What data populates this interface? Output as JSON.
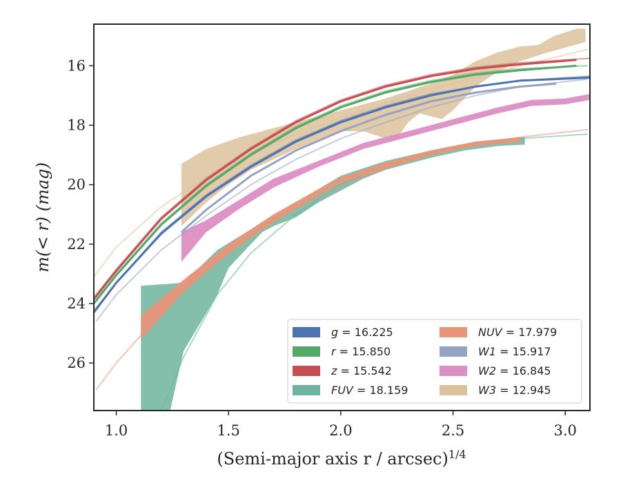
{
  "chart_data": {
    "type": "area",
    "xlabel": "(Semi-major axis r / arcsec)",
    "xlabel_sup": "1/4",
    "ylabel": "m(< r) (mag)",
    "xlim": [
      0.9,
      3.11
    ],
    "ylim": [
      27.6,
      14.6
    ],
    "y_inverted": true,
    "x_ticks": [
      1.0,
      1.5,
      2.0,
      2.5,
      3.0
    ],
    "x_tick_labels": [
      "1.0",
      "1.5",
      "2.0",
      "2.5",
      "3.0"
    ],
    "y_ticks": [
      16,
      18,
      20,
      22,
      24,
      26
    ],
    "y_tick_labels": [
      "16",
      "18",
      "20",
      "22",
      "24",
      "26"
    ],
    "grid": false,
    "legend_position": "bottom-right",
    "legend": [
      {
        "band": "g",
        "value": "16.225",
        "color": "#4c72b0"
      },
      {
        "band": "NUV",
        "value": "17.979",
        "color": "#e8957a"
      },
      {
        "band": "r",
        "value": "15.850",
        "color": "#55a868"
      },
      {
        "band": "W1",
        "value": "15.917",
        "color": "#95a3c3"
      },
      {
        "band": "z",
        "value": "15.542",
        "color": "#c44e52"
      },
      {
        "band": "W2",
        "value": "16.845",
        "color": "#dd8ec4"
      },
      {
        "band": "FUV",
        "value": "18.159",
        "color": "#6fb49e"
      },
      {
        "band": "W3",
        "value": "12.945",
        "color": "#dcc29c"
      }
    ],
    "series": [
      {
        "band": "W3",
        "color": "#dcc29c",
        "model": [
          [
            0.9,
            23.1
          ],
          [
            1.0,
            22.1
          ],
          [
            1.2,
            20.75
          ],
          [
            1.4,
            19.75
          ],
          [
            1.6,
            18.95
          ],
          [
            1.8,
            18.3
          ],
          [
            2.0,
            17.75
          ],
          [
            2.2,
            17.25
          ],
          [
            2.4,
            16.8
          ],
          [
            2.6,
            16.4
          ],
          [
            2.8,
            16.0
          ],
          [
            3.1,
            15.45
          ]
        ],
        "band_upper": [
          [
            1.29,
            19.3
          ],
          [
            1.4,
            18.8
          ],
          [
            1.55,
            18.4
          ],
          [
            1.75,
            18.0
          ],
          [
            2.0,
            17.5
          ],
          [
            2.2,
            17.1
          ],
          [
            2.4,
            16.6
          ],
          [
            2.5,
            16.3
          ],
          [
            2.6,
            15.85
          ],
          [
            2.7,
            15.55
          ],
          [
            2.8,
            15.35
          ],
          [
            2.88,
            15.3
          ],
          [
            2.95,
            15.0
          ],
          [
            3.05,
            14.75
          ],
          [
            3.09,
            14.75
          ]
        ],
        "band_lower": [
          [
            3.09,
            15.2
          ],
          [
            2.9,
            15.6
          ],
          [
            2.8,
            15.85
          ],
          [
            2.7,
            16.2
          ],
          [
            2.6,
            16.7
          ],
          [
            2.5,
            17.5
          ],
          [
            2.45,
            17.8
          ],
          [
            2.35,
            17.6
          ],
          [
            2.3,
            17.9
          ],
          [
            2.25,
            18.45
          ],
          [
            2.2,
            18.45
          ],
          [
            2.1,
            18.2
          ],
          [
            2.0,
            18.2
          ],
          [
            1.9,
            18.5
          ],
          [
            1.8,
            18.8
          ],
          [
            1.6,
            19.5
          ],
          [
            1.5,
            20.0
          ],
          [
            1.4,
            20.6
          ],
          [
            1.29,
            21.4
          ]
        ]
      },
      {
        "band": "FUV",
        "color": "#6fb49e",
        "model": [
          [
            1.2,
            27.6
          ],
          [
            1.3,
            25.8
          ],
          [
            1.45,
            23.7
          ],
          [
            1.6,
            22.3
          ],
          [
            1.8,
            21.0
          ],
          [
            2.0,
            20.0
          ],
          [
            2.2,
            19.35
          ],
          [
            2.4,
            18.9
          ],
          [
            2.6,
            18.6
          ],
          [
            2.8,
            18.45
          ],
          [
            3.1,
            18.3
          ]
        ],
        "band_upper": [
          [
            1.11,
            23.4
          ],
          [
            1.3,
            23.3
          ],
          [
            1.45,
            22.2
          ],
          [
            1.6,
            21.5
          ],
          [
            1.8,
            20.6
          ],
          [
            2.0,
            19.7
          ],
          [
            2.2,
            19.2
          ],
          [
            2.4,
            18.85
          ],
          [
            2.6,
            18.55
          ],
          [
            2.82,
            18.4
          ]
        ],
        "band_lower": [
          [
            2.82,
            18.65
          ],
          [
            2.7,
            18.7
          ],
          [
            2.55,
            18.85
          ],
          [
            2.4,
            19.1
          ],
          [
            2.3,
            19.3
          ],
          [
            2.2,
            19.5
          ],
          [
            2.1,
            19.8
          ],
          [
            2.0,
            20.2
          ],
          [
            1.9,
            20.6
          ],
          [
            1.8,
            21.1
          ],
          [
            1.7,
            21.4
          ],
          [
            1.65,
            21.6
          ],
          [
            1.6,
            22.0
          ],
          [
            1.5,
            22.8
          ],
          [
            1.45,
            23.7
          ],
          [
            1.3,
            25.6
          ],
          [
            1.24,
            27.6
          ],
          [
            1.11,
            27.6
          ]
        ]
      },
      {
        "band": "NUV",
        "color": "#e8957a",
        "model": [
          [
            0.91,
            26.9
          ],
          [
            1.0,
            26.0
          ],
          [
            1.2,
            24.3
          ],
          [
            1.4,
            22.9
          ],
          [
            1.6,
            21.75
          ],
          [
            1.8,
            20.8
          ],
          [
            2.0,
            20.05
          ],
          [
            2.2,
            19.45
          ],
          [
            2.4,
            19.0
          ],
          [
            2.6,
            18.65
          ],
          [
            2.8,
            18.4
          ],
          [
            3.1,
            18.15
          ]
        ],
        "upper": [
          [
            1.11,
            24.4
          ],
          [
            1.3,
            23.2
          ],
          [
            1.5,
            22.0
          ],
          [
            1.7,
            21.0
          ],
          [
            1.9,
            20.15
          ],
          [
            2.0,
            19.75
          ],
          [
            2.2,
            19.25
          ],
          [
            2.4,
            18.85
          ],
          [
            2.6,
            18.55
          ],
          [
            2.8,
            18.4
          ]
        ],
        "lower": [
          [
            2.8,
            18.55
          ],
          [
            2.6,
            18.7
          ],
          [
            2.4,
            19.0
          ],
          [
            2.2,
            19.45
          ],
          [
            2.0,
            19.95
          ],
          [
            1.9,
            20.35
          ],
          [
            1.7,
            21.25
          ],
          [
            1.5,
            22.3
          ],
          [
            1.3,
            23.6
          ],
          [
            1.11,
            25.2
          ]
        ]
      },
      {
        "band": "W2",
        "color": "#dd8ec4",
        "upper": [
          [
            1.29,
            21.6
          ],
          [
            1.4,
            21.2
          ],
          [
            1.55,
            20.5
          ],
          [
            1.7,
            19.8
          ],
          [
            1.9,
            19.2
          ],
          [
            2.1,
            18.6
          ],
          [
            2.3,
            18.2
          ],
          [
            2.5,
            17.8
          ],
          [
            2.7,
            17.4
          ],
          [
            2.85,
            17.15
          ],
          [
            3.0,
            17.1
          ],
          [
            3.11,
            16.95
          ]
        ],
        "lower": [
          [
            3.11,
            17.15
          ],
          [
            3.0,
            17.3
          ],
          [
            2.85,
            17.35
          ],
          [
            2.7,
            17.6
          ],
          [
            2.5,
            18.0
          ],
          [
            2.3,
            18.4
          ],
          [
            2.1,
            18.8
          ],
          [
            1.9,
            19.4
          ],
          [
            1.7,
            20.1
          ],
          [
            1.55,
            20.8
          ],
          [
            1.4,
            21.6
          ],
          [
            1.29,
            22.6
          ]
        ]
      },
      {
        "band": "W1",
        "color": "#95a3c3",
        "model": [
          [
            0.91,
            24.6
          ],
          [
            1.0,
            23.7
          ],
          [
            1.2,
            22.2
          ],
          [
            1.4,
            21.05
          ],
          [
            1.6,
            20.0
          ],
          [
            1.8,
            19.15
          ],
          [
            2.0,
            18.45
          ],
          [
            2.2,
            17.9
          ],
          [
            2.4,
            17.4
          ],
          [
            2.6,
            17.0
          ],
          [
            2.8,
            16.7
          ],
          [
            3.1,
            16.45
          ]
        ],
        "data": [
          [
            1.29,
            21.6
          ],
          [
            1.4,
            20.85
          ],
          [
            1.6,
            19.7
          ],
          [
            1.8,
            18.85
          ],
          [
            2.0,
            18.2
          ],
          [
            2.2,
            17.65
          ],
          [
            2.4,
            17.2
          ],
          [
            2.6,
            16.9
          ],
          [
            2.8,
            16.7
          ],
          [
            2.96,
            16.6
          ]
        ]
      },
      {
        "band": "g",
        "color": "#4c72b0",
        "model": [
          [
            0.9,
            24.25
          ],
          [
            1.0,
            23.3
          ],
          [
            1.2,
            21.6
          ],
          [
            1.4,
            20.35
          ],
          [
            1.6,
            19.35
          ],
          [
            1.8,
            18.5
          ],
          [
            2.0,
            17.85
          ],
          [
            2.2,
            17.35
          ],
          [
            2.4,
            16.95
          ],
          [
            2.6,
            16.7
          ],
          [
            2.8,
            16.5
          ],
          [
            3.11,
            16.35
          ]
        ],
        "data": [
          [
            0.9,
            24.3
          ],
          [
            1.0,
            23.3
          ],
          [
            1.2,
            21.65
          ],
          [
            1.4,
            20.4
          ],
          [
            1.6,
            19.4
          ],
          [
            1.8,
            18.55
          ],
          [
            2.0,
            17.9
          ],
          [
            2.2,
            17.4
          ],
          [
            2.4,
            17.0
          ],
          [
            2.6,
            16.7
          ],
          [
            2.8,
            16.5
          ],
          [
            3.11,
            16.4
          ]
        ]
      },
      {
        "band": "r",
        "color": "#55a868",
        "model": [
          [
            0.9,
            23.95
          ],
          [
            1.0,
            23.0
          ],
          [
            1.2,
            21.3
          ],
          [
            1.4,
            20.0
          ],
          [
            1.6,
            18.95
          ],
          [
            1.8,
            18.05
          ],
          [
            2.0,
            17.35
          ],
          [
            2.2,
            16.85
          ],
          [
            2.4,
            16.5
          ],
          [
            2.6,
            16.25
          ],
          [
            2.8,
            16.1
          ],
          [
            3.1,
            16.0
          ]
        ],
        "data": [
          [
            0.9,
            24.0
          ],
          [
            1.0,
            23.05
          ],
          [
            1.2,
            21.35
          ],
          [
            1.4,
            20.05
          ],
          [
            1.6,
            19.0
          ],
          [
            1.8,
            18.1
          ],
          [
            2.0,
            17.4
          ],
          [
            2.2,
            16.9
          ],
          [
            2.4,
            16.55
          ],
          [
            2.6,
            16.3
          ],
          [
            2.8,
            16.15
          ],
          [
            3.05,
            16.0
          ]
        ]
      },
      {
        "band": "z",
        "color": "#c44e52",
        "model": [
          [
            0.9,
            23.8
          ],
          [
            1.0,
            22.85
          ],
          [
            1.2,
            21.1
          ],
          [
            1.4,
            19.8
          ],
          [
            1.6,
            18.75
          ],
          [
            1.8,
            17.85
          ],
          [
            2.0,
            17.15
          ],
          [
            2.2,
            16.65
          ],
          [
            2.4,
            16.3
          ],
          [
            2.6,
            16.05
          ],
          [
            2.8,
            15.9
          ],
          [
            3.11,
            15.75
          ]
        ],
        "data": [
          [
            0.9,
            23.85
          ],
          [
            1.0,
            22.9
          ],
          [
            1.2,
            21.15
          ],
          [
            1.4,
            19.85
          ],
          [
            1.6,
            18.8
          ],
          [
            1.8,
            17.9
          ],
          [
            2.0,
            17.2
          ],
          [
            2.2,
            16.7
          ],
          [
            2.4,
            16.35
          ],
          [
            2.6,
            16.1
          ],
          [
            2.8,
            15.95
          ],
          [
            3.05,
            15.8
          ]
        ]
      }
    ]
  }
}
